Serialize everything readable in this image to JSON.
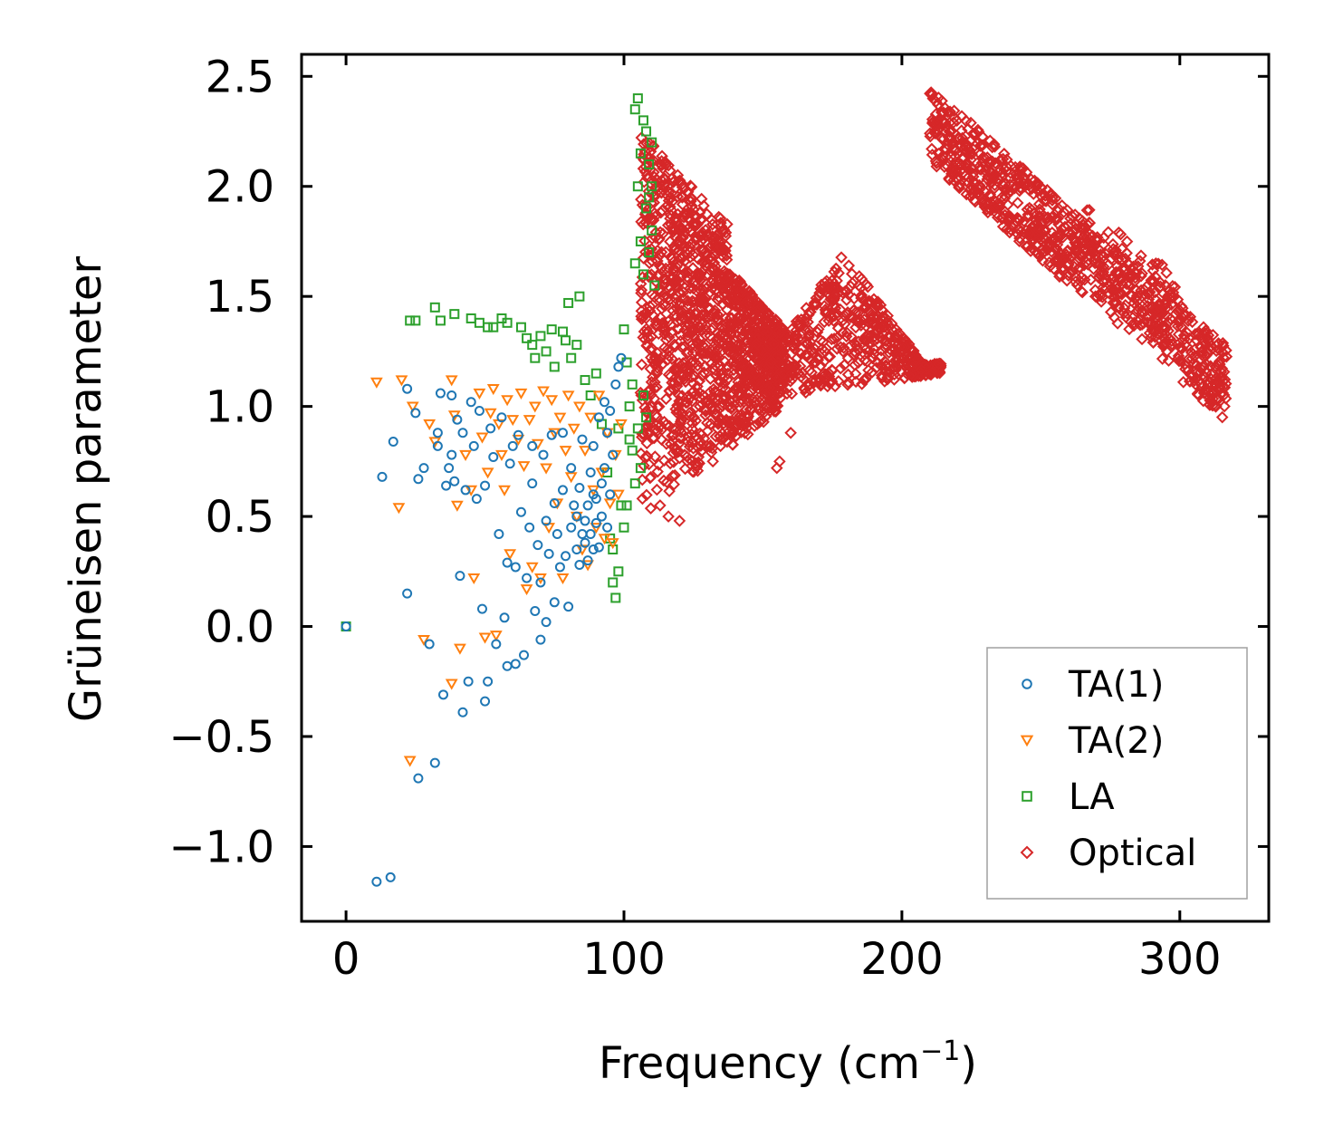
{
  "chart_data": {
    "type": "scatter",
    "title": "",
    "xlabel": "Frequency (cm",
    "xlabel_sup": "−1",
    "xlabel_close": ")",
    "ylabel": "Grüneisen parameter",
    "xlim": [
      -16,
      332
    ],
    "ylim": [
      -1.34,
      2.6
    ],
    "xticks": [
      0,
      100,
      200,
      300
    ],
    "xtick_labels": [
      "0",
      "100",
      "200",
      "300"
    ],
    "yticks": [
      -1.0,
      -0.5,
      0.0,
      0.5,
      1.0,
      1.5,
      2.0,
      2.5
    ],
    "ytick_labels": [
      "−1.0",
      "−0.5",
      "0.0",
      "0.5",
      "1.0",
      "1.5",
      "2.0",
      "2.5"
    ],
    "legend_position": "lower-right",
    "series": [
      {
        "name": "TA(1)",
        "color": "#1f77b4",
        "marker": "circle",
        "points": [
          [
            0,
            0.0
          ],
          [
            11,
            -1.16
          ],
          [
            16,
            -1.14
          ],
          [
            13,
            0.68
          ],
          [
            17,
            0.84
          ],
          [
            22,
            0.15
          ],
          [
            22,
            1.08
          ],
          [
            25,
            0.97
          ],
          [
            26,
            -0.69
          ],
          [
            26,
            0.67
          ],
          [
            28,
            0.72
          ],
          [
            30,
            -0.08
          ],
          [
            32,
            -0.62
          ],
          [
            33,
            0.88
          ],
          [
            33,
            0.82
          ],
          [
            34,
            1.06
          ],
          [
            35,
            -0.31
          ],
          [
            36,
            0.64
          ],
          [
            37,
            0.72
          ],
          [
            38,
            1.05
          ],
          [
            38,
            0.78
          ],
          [
            39,
            0.66
          ],
          [
            40,
            0.94
          ],
          [
            41,
            0.23
          ],
          [
            42,
            0.88
          ],
          [
            42,
            -0.39
          ],
          [
            43,
            0.62
          ],
          [
            44,
            -0.25
          ],
          [
            45,
            1.02
          ],
          [
            46,
            0.82
          ],
          [
            47,
            0.58
          ],
          [
            48,
            0.98
          ],
          [
            49,
            0.08
          ],
          [
            50,
            0.64
          ],
          [
            50,
            -0.34
          ],
          [
            51,
            -0.25
          ],
          [
            52,
            0.9
          ],
          [
            53,
            0.77
          ],
          [
            54,
            -0.08
          ],
          [
            55,
            0.42
          ],
          [
            56,
            0.95
          ],
          [
            57,
            0.04
          ],
          [
            58,
            0.29
          ],
          [
            58,
            -0.18
          ],
          [
            59,
            0.74
          ],
          [
            60,
            0.82
          ],
          [
            61,
            0.27
          ],
          [
            61,
            -0.17
          ],
          [
            62,
            0.87
          ],
          [
            63,
            0.52
          ],
          [
            64,
            -0.13
          ],
          [
            65,
            0.22
          ],
          [
            66,
            0.45
          ],
          [
            67,
            0.82
          ],
          [
            67,
            0.65
          ],
          [
            68,
            0.07
          ],
          [
            69,
            0.37
          ],
          [
            70,
            -0.06
          ],
          [
            70,
            0.2
          ],
          [
            71,
            0.78
          ],
          [
            72,
            0.48
          ],
          [
            72,
            0.02
          ],
          [
            73,
            0.33
          ],
          [
            74,
            0.87
          ],
          [
            75,
            0.56
          ],
          [
            75,
            0.11
          ],
          [
            76,
            0.42
          ],
          [
            77,
            0.27
          ],
          [
            78,
            0.62
          ],
          [
            78,
            0.88
          ],
          [
            79,
            0.32
          ],
          [
            80,
            0.09
          ],
          [
            81,
            0.45
          ],
          [
            81,
            0.72
          ],
          [
            82,
            0.55
          ],
          [
            83,
            0.35
          ],
          [
            84,
            0.63
          ],
          [
            84,
            0.28
          ],
          [
            85,
            0.85
          ],
          [
            86,
            0.48
          ],
          [
            86,
            0.38
          ],
          [
            87,
            0.55
          ],
          [
            88,
            0.7
          ],
          [
            88,
            0.42
          ],
          [
            89,
            0.82
          ],
          [
            89,
            0.35
          ],
          [
            90,
            0.58
          ],
          [
            90,
            0.47
          ],
          [
            91,
            0.95
          ],
          [
            92,
            0.65
          ],
          [
            92,
            0.5
          ],
          [
            93,
            1.02
          ],
          [
            93,
            0.72
          ],
          [
            94,
            0.88
          ],
          [
            95,
            0.6
          ],
          [
            95,
            0.98
          ],
          [
            96,
            0.78
          ],
          [
            97,
            1.1
          ],
          [
            98,
            1.18
          ],
          [
            99,
            1.22
          ],
          [
            89,
            0.6
          ],
          [
            87,
            0.3
          ],
          [
            85,
            0.42
          ],
          [
            83,
            0.5
          ],
          [
            91,
            0.36
          ],
          [
            94,
            0.45
          ]
        ]
      },
      {
        "name": "TA(2)",
        "color": "#ff7f0e",
        "marker": "triangle-down",
        "points": [
          [
            11,
            1.11
          ],
          [
            19,
            0.54
          ],
          [
            20,
            1.12
          ],
          [
            23,
            -0.61
          ],
          [
            24,
            1.0
          ],
          [
            28,
            -0.06
          ],
          [
            30,
            0.92
          ],
          [
            32,
            0.84
          ],
          [
            38,
            1.12
          ],
          [
            38,
            -0.26
          ],
          [
            39,
            0.96
          ],
          [
            40,
            0.55
          ],
          [
            41,
            -0.1
          ],
          [
            43,
            0.78
          ],
          [
            45,
            0.62
          ],
          [
            46,
            0.22
          ],
          [
            48,
            1.06
          ],
          [
            49,
            0.86
          ],
          [
            50,
            -0.05
          ],
          [
            51,
            0.7
          ],
          [
            52,
            0.97
          ],
          [
            53,
            1.08
          ],
          [
            54,
            -0.04
          ],
          [
            55,
            0.92
          ],
          [
            56,
            0.78
          ],
          [
            57,
            0.62
          ],
          [
            58,
            1.03
          ],
          [
            59,
            0.33
          ],
          [
            60,
            0.94
          ],
          [
            62,
            0.85
          ],
          [
            63,
            1.06
          ],
          [
            64,
            0.73
          ],
          [
            65,
            0.17
          ],
          [
            66,
            0.94
          ],
          [
            67,
            0.27
          ],
          [
            68,
            1.0
          ],
          [
            69,
            0.83
          ],
          [
            70,
            0.22
          ],
          [
            71,
            1.07
          ],
          [
            72,
            0.72
          ],
          [
            73,
            0.45
          ],
          [
            74,
            1.03
          ],
          [
            75,
            0.88
          ],
          [
            76,
            0.56
          ],
          [
            77,
            0.95
          ],
          [
            78,
            0.22
          ],
          [
            79,
            0.8
          ],
          [
            80,
            1.05
          ],
          [
            81,
            0.68
          ],
          [
            82,
            0.9
          ],
          [
            83,
            0.5
          ],
          [
            84,
            1.0
          ],
          [
            85,
            0.35
          ],
          [
            86,
            0.8
          ],
          [
            87,
            0.28
          ],
          [
            88,
            0.95
          ],
          [
            89,
            0.62
          ],
          [
            90,
            0.45
          ],
          [
            91,
            1.05
          ],
          [
            92,
            0.7
          ],
          [
            93,
            0.4
          ],
          [
            94,
            0.88
          ],
          [
            95,
            0.56
          ],
          [
            96,
            0.38
          ],
          [
            97,
            0.78
          ],
          [
            98,
            0.6
          ],
          [
            99,
            0.92
          ]
        ]
      },
      {
        "name": "LA",
        "color": "#2ca02c",
        "marker": "square",
        "points": [
          [
            0,
            0.0
          ],
          [
            23,
            1.39
          ],
          [
            25,
            1.39
          ],
          [
            32,
            1.45
          ],
          [
            34,
            1.39
          ],
          [
            39,
            1.42
          ],
          [
            45,
            1.4
          ],
          [
            48,
            1.38
          ],
          [
            51,
            1.36
          ],
          [
            53,
            1.36
          ],
          [
            56,
            1.4
          ],
          [
            58,
            1.38
          ],
          [
            63,
            1.36
          ],
          [
            65,
            1.31
          ],
          [
            67,
            1.28
          ],
          [
            68,
            1.22
          ],
          [
            70,
            1.32
          ],
          [
            72,
            1.25
          ],
          [
            74,
            1.35
          ],
          [
            75,
            1.18
          ],
          [
            78,
            1.34
          ],
          [
            79,
            1.3
          ],
          [
            80,
            1.47
          ],
          [
            81,
            1.22
          ],
          [
            83,
            1.28
          ],
          [
            84,
            1.5
          ],
          [
            86,
            1.12
          ],
          [
            88,
            1.05
          ],
          [
            90,
            1.15
          ],
          [
            92,
            0.92
          ],
          [
            94,
            0.7
          ],
          [
            95,
            0.4
          ],
          [
            96,
            0.2
          ],
          [
            97,
            0.13
          ],
          [
            98,
            0.25
          ],
          [
            99,
            0.55
          ],
          [
            100,
            1.35
          ],
          [
            101,
            1.2
          ],
          [
            102,
            0.85
          ],
          [
            103,
            1.1
          ],
          [
            104,
            1.65
          ],
          [
            104,
            2.35
          ],
          [
            105,
            2.4
          ],
          [
            105,
            2.0
          ],
          [
            106,
            2.15
          ],
          [
            106,
            1.75
          ],
          [
            107,
            2.3
          ],
          [
            107,
            1.6
          ],
          [
            108,
            2.25
          ],
          [
            108,
            1.9
          ],
          [
            109,
            2.1
          ],
          [
            109,
            1.7
          ],
          [
            110,
            2.2
          ],
          [
            110,
            1.8
          ],
          [
            111,
            1.55
          ],
          [
            102,
            1.0
          ],
          [
            103,
            0.8
          ],
          [
            104,
            0.65
          ],
          [
            105,
            0.9
          ],
          [
            106,
            0.72
          ],
          [
            107,
            1.05
          ],
          [
            108,
            0.95
          ],
          [
            101,
            0.55
          ],
          [
            100,
            0.45
          ],
          [
            96,
            0.35
          ],
          [
            98,
            0.9
          ],
          [
            110,
            2.0
          ],
          [
            109,
            1.95
          ]
        ]
      },
      {
        "name": "Optical",
        "color": "#d62728",
        "marker": "diamond"
      }
    ]
  }
}
